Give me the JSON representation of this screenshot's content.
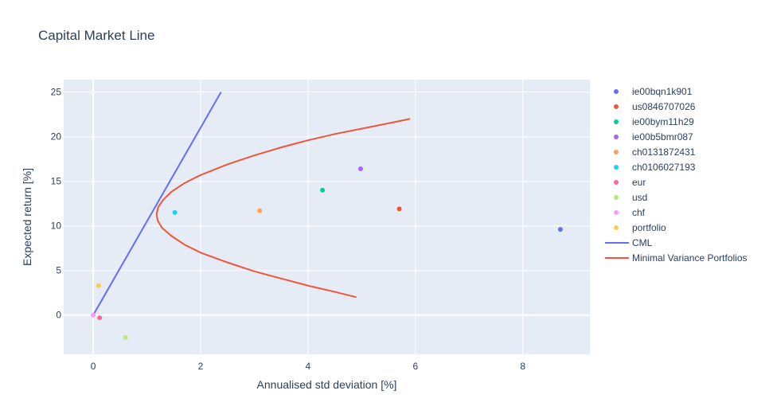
{
  "chart_data": {
    "type": "scatter",
    "title": "Capital Market Line",
    "xlabel": "Annualised std deviation [%]",
    "ylabel": "Expected return [%]",
    "xlim": [
      -0.55,
      9.25
    ],
    "ylim": [
      -4.4,
      26.4
    ],
    "xticks": [
      0,
      2,
      4,
      6,
      8
    ],
    "yticks": [
      0,
      5,
      10,
      15,
      20,
      25
    ],
    "grid": true,
    "legend_position": "right",
    "plot_bg": "#e5ecf6",
    "series": [
      {
        "name": "ie00bqn1k901",
        "mode": "markers",
        "color": "#636efa",
        "x": [
          8.7
        ],
        "y": [
          9.6
        ]
      },
      {
        "name": "us0846707026",
        "mode": "markers",
        "color": "#ef553b",
        "x": [
          5.7
        ],
        "y": [
          11.9
        ]
      },
      {
        "name": "ie00bym11h29",
        "mode": "markers",
        "color": "#00cc96",
        "x": [
          4.27
        ],
        "y": [
          14.0
        ]
      },
      {
        "name": "ie00b5bmr087",
        "mode": "markers",
        "color": "#ab63fa",
        "x": [
          4.98
        ],
        "y": [
          16.4
        ]
      },
      {
        "name": "ch0131872431",
        "mode": "markers",
        "color": "#ffa15a",
        "x": [
          3.1
        ],
        "y": [
          11.7
        ]
      },
      {
        "name": "ch0106027193",
        "mode": "markers",
        "color": "#19d3f3",
        "x": [
          1.52
        ],
        "y": [
          11.5
        ]
      },
      {
        "name": "eur",
        "mode": "markers",
        "color": "#ff6692",
        "x": [
          0.12
        ],
        "y": [
          -0.3
        ]
      },
      {
        "name": "usd",
        "mode": "markers",
        "color": "#b6e880",
        "x": [
          0.6
        ],
        "y": [
          -2.5
        ]
      },
      {
        "name": "chf",
        "mode": "markers",
        "color": "#ff97ff",
        "x": [
          0.0
        ],
        "y": [
          0.0
        ]
      },
      {
        "name": "portfolio",
        "mode": "markers",
        "color": "#fecb52",
        "x": [
          0.1
        ],
        "y": [
          3.3
        ]
      },
      {
        "name": "CML",
        "mode": "lines",
        "color": "#636efa",
        "x": [
          0.0,
          2.38
        ],
        "y": [
          0.0,
          25.0
        ]
      },
      {
        "name": "Minimal Variance Portfolios",
        "mode": "lines",
        "color": "#ef553b",
        "x": [
          4.9,
          4.5,
          4.0,
          3.5,
          3.0,
          2.5,
          2.0,
          1.7,
          1.45,
          1.28,
          1.2,
          1.18,
          1.21,
          1.3,
          1.45,
          1.7,
          2.0,
          2.5,
          3.0,
          3.5,
          4.0,
          4.5,
          5.0,
          5.5,
          5.9
        ],
        "y": [
          2.0,
          2.6,
          3.3,
          4.1,
          4.9,
          5.9,
          7.0,
          7.9,
          8.9,
          9.8,
          10.6,
          11.3,
          12.1,
          12.9,
          13.8,
          14.8,
          15.7,
          16.9,
          17.9,
          18.8,
          19.6,
          20.3,
          20.9,
          21.5,
          22.0
        ]
      }
    ]
  }
}
